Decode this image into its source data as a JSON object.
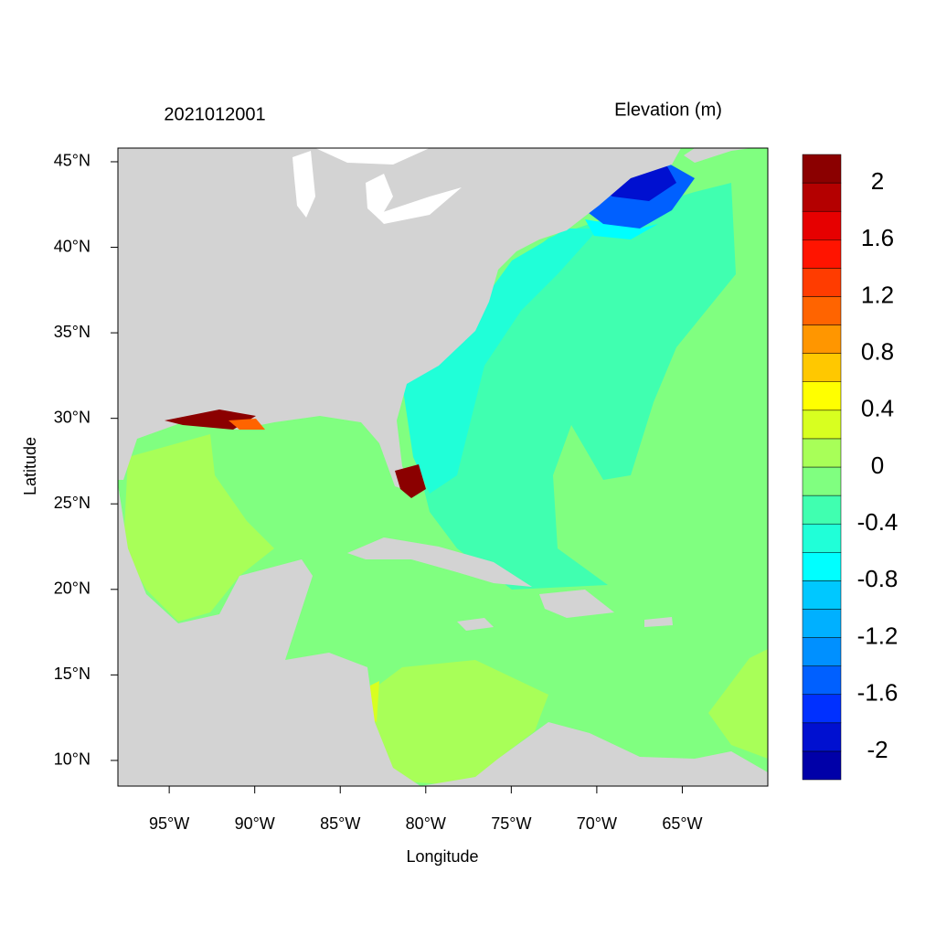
{
  "chart_data": {
    "type": "map",
    "title_left": "2021012001",
    "title_right": "Elevation (m)",
    "xlabel": "Longitude",
    "ylabel": "Latitude",
    "xlim": [
      -98,
      -60
    ],
    "ylim": [
      8.5,
      45.8
    ],
    "xticks": [
      {
        "value": -95,
        "label": "95°W"
      },
      {
        "value": -90,
        "label": "90°W"
      },
      {
        "value": -85,
        "label": "85°W"
      },
      {
        "value": -80,
        "label": "80°W"
      },
      {
        "value": -75,
        "label": "75°W"
      },
      {
        "value": -70,
        "label": "70°W"
      },
      {
        "value": -65,
        "label": "65°W"
      }
    ],
    "yticks": [
      {
        "value": 10,
        "label": "10°N"
      },
      {
        "value": 15,
        "label": "15°N"
      },
      {
        "value": 20,
        "label": "20°N"
      },
      {
        "value": 25,
        "label": "25°N"
      },
      {
        "value": 30,
        "label": "30°N"
      },
      {
        "value": 35,
        "label": "35°N"
      },
      {
        "value": 40,
        "label": "40°N"
      },
      {
        "value": 45,
        "label": "45°N"
      }
    ],
    "colorbar": {
      "levels": [
        -2.2,
        -2,
        -1.8,
        -1.6,
        -1.4,
        -1.2,
        -1,
        -0.8,
        -0.6,
        -0.4,
        -0.2,
        0,
        0.2,
        0.4,
        0.6,
        0.8,
        1,
        1.2,
        1.4,
        1.6,
        1.8,
        2,
        2.2
      ],
      "colors": [
        "#0000a8",
        "#0010d0",
        "#0030ff",
        "#0060ff",
        "#0090ff",
        "#00b0ff",
        "#00c8ff",
        "#00ffff",
        "#20ffd8",
        "#40ffb0",
        "#80ff80",
        "#a8ff58",
        "#d8ff20",
        "#ffff00",
        "#ffc800",
        "#ff9600",
        "#ff6400",
        "#ff3c00",
        "#ff1400",
        "#e60000",
        "#b40000",
        "#8b0000"
      ],
      "ticks": [
        -2,
        -1.6,
        -1.2,
        -0.8,
        -0.4,
        0,
        0.4,
        0.8,
        1.2,
        1.6,
        2
      ]
    }
  }
}
